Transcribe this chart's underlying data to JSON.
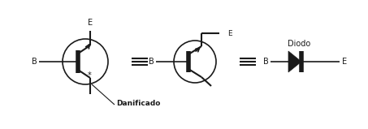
{
  "bg_color": "#ffffff",
  "label_danificado": "Danificado",
  "label_B1": "B",
  "label_E1": "E",
  "label_B2": "B",
  "label_E2": "E",
  "label_B3": "B",
  "label_E3": "E",
  "label_diodo": "Diodo",
  "line_color": "#1a1a1a",
  "text_color": "#1a1a1a",
  "font_size": 7.0,
  "dpi": 100,
  "figw": 4.53,
  "figh": 1.59
}
